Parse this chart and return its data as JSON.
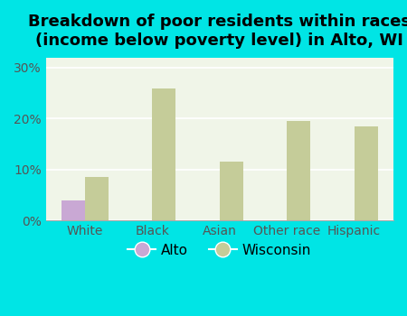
{
  "title": "Breakdown of poor residents within races\n(income below poverty level) in Alto, WI",
  "categories": [
    "White",
    "Black",
    "Asian",
    "Other race",
    "Hispanic"
  ],
  "alto_values": [
    4.0,
    0,
    0,
    0,
    0
  ],
  "wisconsin_values": [
    8.5,
    26.0,
    11.5,
    19.5,
    18.5
  ],
  "alto_color": "#c9a8d4",
  "wisconsin_color": "#c5cc99",
  "background_color": "#00e5e5",
  "plot_bg_color": "#f0f5e8",
  "ylim": [
    0,
    32
  ],
  "yticks": [
    0,
    10,
    20,
    30
  ],
  "ytick_labels": [
    "0%",
    "10%",
    "20%",
    "30%"
  ],
  "bar_width": 0.35,
  "title_fontsize": 13,
  "tick_fontsize": 10,
  "legend_fontsize": 11
}
